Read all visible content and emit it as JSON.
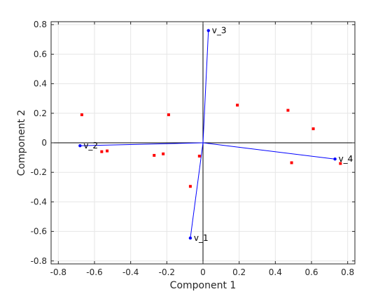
{
  "chart_data": {
    "type": "scatter",
    "title": "",
    "xlabel": "Component 1",
    "ylabel": "Component 2",
    "xlim": [
      -0.84,
      0.84
    ],
    "ylim": [
      -0.82,
      0.82
    ],
    "grid": true,
    "x_ticks": [
      -0.8,
      -0.6,
      -0.4,
      -0.2,
      0,
      0.2,
      0.4,
      0.6,
      0.8
    ],
    "x_tick_labels": [
      "-0.8",
      "-0.6",
      "-0.4",
      "-0.2",
      "0",
      "0.2",
      "0.4",
      "0.6",
      "0.8"
    ],
    "y_ticks": [
      -0.8,
      -0.6,
      -0.4,
      -0.2,
      0,
      0.2,
      0.4,
      0.6,
      0.8
    ],
    "y_tick_labels": [
      "-0.8",
      "-0.6",
      "-0.4",
      "-0.2",
      "0",
      "0.2",
      "0.4",
      "0.6",
      "0.8"
    ],
    "vectors": [
      {
        "name": "v_1",
        "x": -0.07,
        "y": -0.645
      },
      {
        "name": "v_2",
        "x": -0.68,
        "y": -0.02
      },
      {
        "name": "v_3",
        "x": 0.03,
        "y": 0.76
      },
      {
        "name": "v_4",
        "x": 0.73,
        "y": -0.11
      }
    ],
    "points": [
      {
        "x": -0.67,
        "y": 0.19
      },
      {
        "x": -0.19,
        "y": 0.19
      },
      {
        "x": 0.19,
        "y": 0.255
      },
      {
        "x": 0.47,
        "y": 0.22
      },
      {
        "x": 0.61,
        "y": 0.095
      },
      {
        "x": -0.56,
        "y": -0.06
      },
      {
        "x": -0.53,
        "y": -0.055
      },
      {
        "x": -0.27,
        "y": -0.085
      },
      {
        "x": -0.22,
        "y": -0.075
      },
      {
        "x": -0.02,
        "y": -0.09
      },
      {
        "x": -0.07,
        "y": -0.295
      },
      {
        "x": 0.49,
        "y": -0.135
      },
      {
        "x": 0.76,
        "y": -0.14
      }
    ],
    "colors": {
      "vector": "#0000ff",
      "point": "#ff0000",
      "axis": "#000000",
      "grid": "#e6e6e6",
      "frame": "#262626"
    }
  }
}
